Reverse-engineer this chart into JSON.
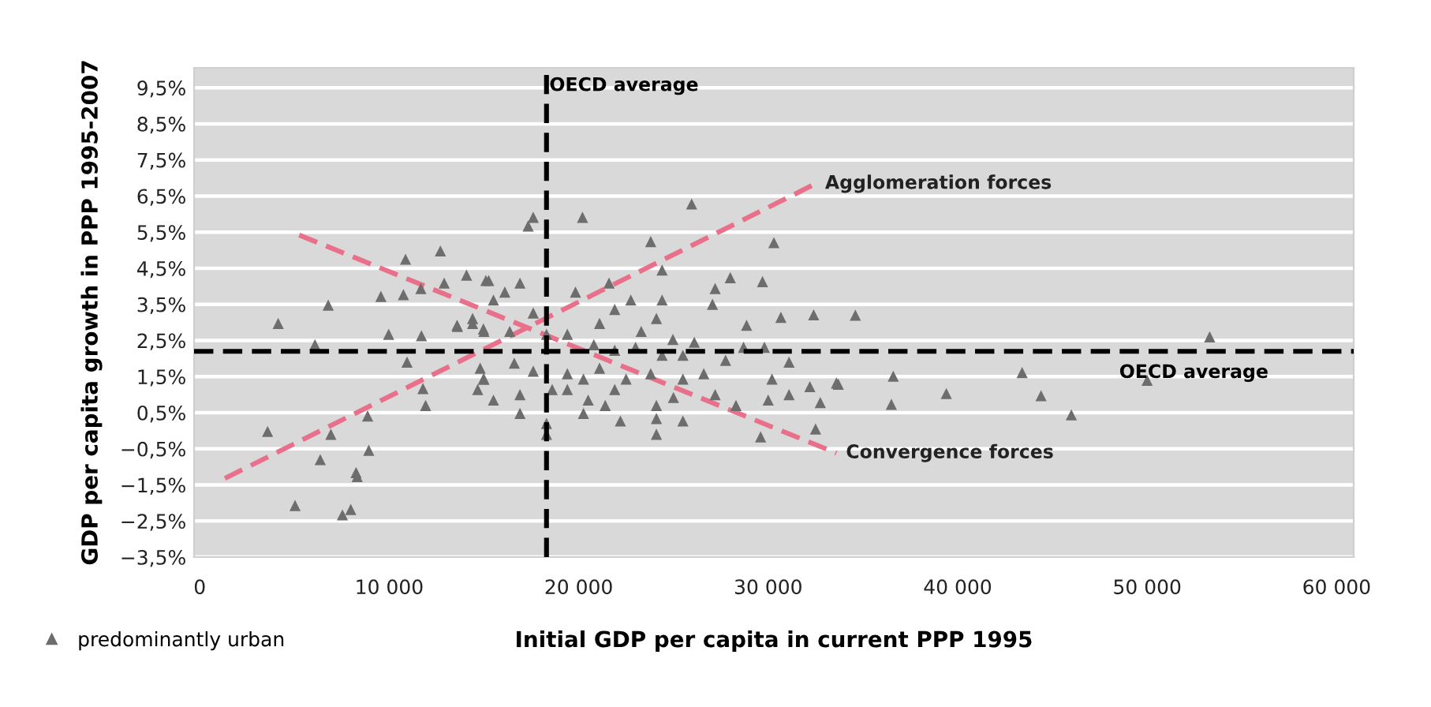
{
  "chart_data": {
    "type": "scatter",
    "xlabel": "Initial GDP per capita in current PPP 1995",
    "ylabel": "GDP per capita growth in PPP 1995-2007",
    "xlim": [
      -300,
      60900
    ],
    "xticks": [
      {
        "value": 0,
        "label": "0"
      },
      {
        "value": 10000,
        "label": "10 000"
      },
      {
        "value": 20000,
        "label": "20 000"
      },
      {
        "value": 30000,
        "label": "30 000"
      },
      {
        "value": 40000,
        "label": "40 000"
      },
      {
        "value": 50000,
        "label": "50 000"
      },
      {
        "value": 60000,
        "label": "60 000"
      }
    ],
    "ylim": [
      -3.5,
      10.05
    ],
    "yticks": [
      {
        "value": -3.5,
        "label": "−3,5%"
      },
      {
        "value": -2.5,
        "label": "−2,5%"
      },
      {
        "value": -1.5,
        "label": "−1,5%"
      },
      {
        "value": -0.5,
        "label": "−0,5%"
      },
      {
        "value": 0.5,
        "label": "0,5%"
      },
      {
        "value": 1.5,
        "label": "1,5%"
      },
      {
        "value": 2.5,
        "label": "2,5%"
      },
      {
        "value": 3.5,
        "label": "3,5%"
      },
      {
        "value": 4.5,
        "label": "4,5%"
      },
      {
        "value": 5.5,
        "label": "5,5%"
      },
      {
        "value": 6.5,
        "label": "6,5%"
      },
      {
        "value": 7.5,
        "label": "7,5%"
      },
      {
        "value": 8.5,
        "label": "8,5%"
      },
      {
        "value": 9.5,
        "label": "9,5%"
      }
    ],
    "grid": "y",
    "legend": "bottom left",
    "ref_lines": [
      {
        "axis": "x",
        "value": 18300,
        "label": "OECD average",
        "color": "#000000",
        "line_style": "dashed"
      },
      {
        "axis": "y",
        "value": 2.2,
        "label": "OECD average",
        "color": "#000000",
        "line_style": "dashed"
      }
    ],
    "series": [
      {
        "name": "predominantly urban",
        "marker": "triangle",
        "color": "#6d6d6d",
        "x": [
          4140,
          6780,
          6080,
          10860,
          12700,
          9560,
          10750,
          11670,
          14080,
          12900,
          15100,
          9970,
          11700,
          13580,
          14400,
          14970,
          10940,
          11780,
          11920,
          8860,
          14670,
          14970,
          3580,
          6920,
          6360,
          8920,
          8250,
          8310,
          5030,
          7530,
          7970,
          17330,
          17600,
          20200,
          25960,
          23800,
          30300,
          15250,
          16900,
          16100,
          15500,
          24400,
          27200,
          28000,
          29700,
          27060,
          30670,
          32400,
          28860,
          19830,
          21600,
          22750,
          24400,
          21900,
          21100,
          23300,
          24100,
          24970,
          26100,
          19400,
          17600,
          14400,
          13600,
          15000,
          16360,
          18300,
          20800,
          21900,
          23000,
          24400,
          25500,
          28700,
          29800,
          27750,
          31100,
          14800,
          16600,
          17600,
          19400,
          21100,
          20250,
          22500,
          23800,
          25500,
          26600,
          30200,
          32200,
          33700,
          16900,
          18600,
          19400,
          20500,
          21400,
          21900,
          24100,
          25000,
          27200,
          28300,
          30000,
          31100,
          32750,
          16900,
          20250,
          22200,
          24100,
          25500,
          24100,
          29600,
          32500,
          18300,
          15500,
          15000,
          36600,
          36500,
          39400,
          43400,
          44400,
          46000,
          50000,
          33600,
          53300,
          34600,
          18300
        ],
        "values": [
          2.97,
          3.48,
          2.38,
          4.75,
          4.98,
          3.72,
          3.77,
          3.94,
          4.31,
          4.09,
          4.16,
          2.67,
          2.63,
          2.92,
          3.11,
          2.82,
          1.9,
          1.17,
          0.7,
          0.41,
          1.14,
          1.43,
          -0.02,
          -0.1,
          -0.8,
          -0.54,
          -1.16,
          -1.27,
          -2.07,
          -2.33,
          -2.18,
          5.67,
          5.91,
          5.91,
          6.28,
          5.24,
          5.21,
          4.16,
          4.09,
          3.84,
          3.62,
          4.45,
          3.94,
          4.24,
          4.13,
          3.5,
          3.14,
          3.21,
          2.92,
          3.84,
          4.09,
          3.62,
          3.62,
          3.36,
          2.97,
          2.75,
          3.11,
          2.53,
          2.45,
          2.67,
          3.26,
          2.97,
          2.89,
          2.75,
          2.75,
          2.67,
          2.38,
          2.23,
          2.31,
          2.09,
          2.09,
          2.31,
          2.31,
          1.95,
          1.9,
          1.73,
          1.87,
          1.65,
          1.58,
          1.73,
          1.43,
          1.43,
          1.58,
          1.43,
          1.58,
          1.43,
          1.22,
          1.29,
          1.0,
          1.14,
          1.14,
          0.85,
          0.7,
          1.14,
          0.7,
          0.92,
          1.0,
          0.7,
          0.85,
          1.0,
          0.78,
          0.48,
          0.48,
          0.27,
          0.34,
          0.27,
          -0.1,
          -0.17,
          0.05,
          0.2,
          0.85,
          1.43,
          1.51,
          0.73,
          1.03,
          1.61,
          0.97,
          0.44,
          1.4,
          1.32,
          2.6,
          3.2,
          -0.1
        ]
      },
      {
        "name": "Agglomeration forces",
        "type": "line",
        "line_style": "dashed",
        "color": "#e8708a",
        "x": [
          1330,
          32500
        ],
        "values": [
          -1.32,
          6.84
        ]
      },
      {
        "name": "Convergence forces",
        "type": "line",
        "line_style": "dashed",
        "color": "#e8708a",
        "x": [
          5250,
          33600
        ],
        "values": [
          5.42,
          -0.62
        ]
      }
    ]
  }
}
